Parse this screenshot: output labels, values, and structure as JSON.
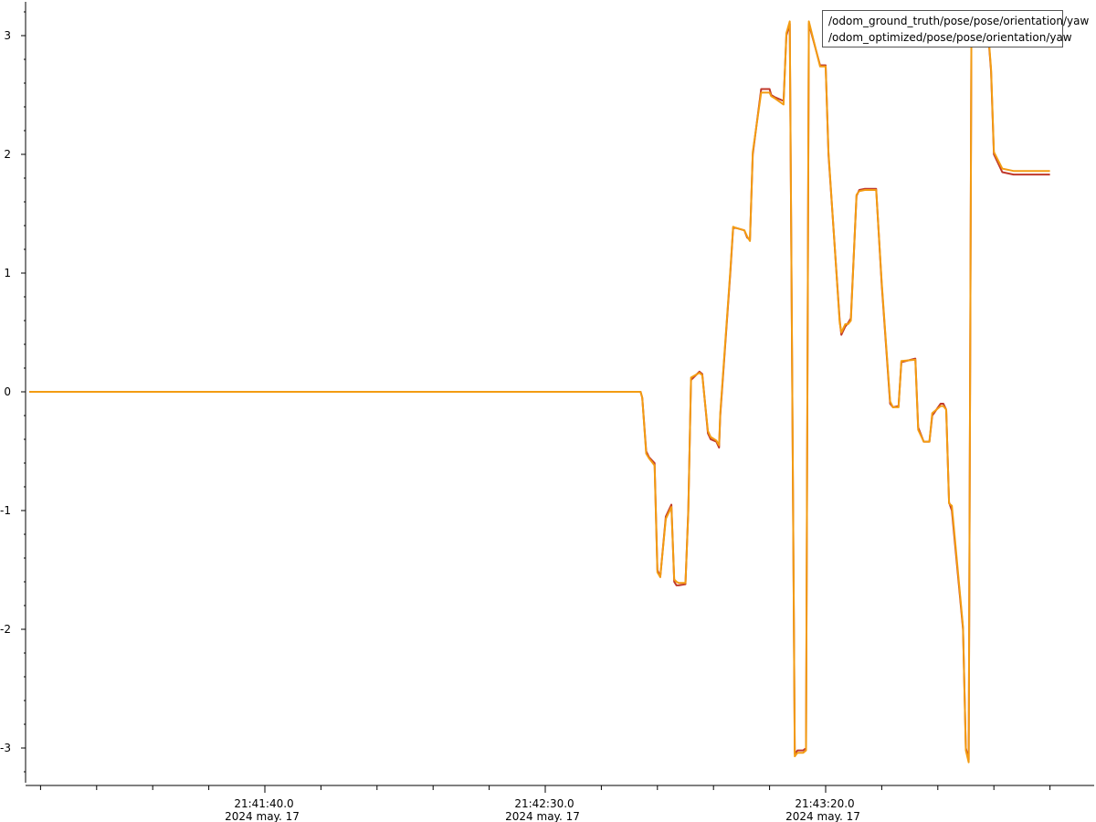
{
  "chart_data": {
    "type": "line",
    "title": "",
    "xlabel": "",
    "ylabel": "",
    "x_unit": "seconds relative to 21:41:40.0 (2024 may. 17)",
    "xlim": [
      -42,
      140
    ],
    "ylim": [
      -3.3,
      3.3
    ],
    "y_ticks": [
      3,
      2,
      1,
      0,
      -1,
      -2,
      -3
    ],
    "y_tick_labels": [
      "3",
      "2",
      "1",
      "0",
      "-1",
      "-2",
      "-3"
    ],
    "x_ticks": [
      0,
      50,
      100
    ],
    "x_tick_labels": [
      {
        "time": "21:41:40.0",
        "date": "2024 may. 17"
      },
      {
        "time": "21:42:30.0",
        "date": "2024 may. 17"
      },
      {
        "time": "21:43:20.0",
        "date": "2024 may. 17"
      }
    ],
    "grid": false,
    "legend_position": "top-right",
    "series": [
      {
        "name": "/odom_ground_truth/pose/pose/orientation/yaw",
        "color": "#c0392b",
        "x": [
          -42,
          67,
          67.3,
          68,
          68.5,
          69.5,
          70,
          70.5,
          71.5,
          72.5,
          73,
          73.4,
          73.8,
          75,
          75.5,
          76,
          77.5,
          78,
          79,
          79.5,
          80.5,
          81,
          81.2,
          83,
          83.5,
          84,
          85.5,
          86,
          86.5,
          87,
          88.5,
          90,
          90.3,
          91,
          92.5,
          93,
          93.6,
          94.5,
          94.8,
          95,
          96,
          96.5,
          97,
          99,
          100,
          100.5,
          102.5,
          102.8,
          103,
          103.5,
          104,
          104.5,
          105.5,
          106,
          107,
          107.5,
          109,
          110,
          111.5,
          112,
          113,
          113.5,
          116,
          116.5,
          117.5,
          118,
          118.5,
          119,
          120.5,
          121,
          121.5,
          122,
          122.5,
          124.5,
          125,
          125.5,
          126,
          129,
          129.5,
          130,
          131.5,
          133.5,
          134,
          136,
          136.5,
          138,
          140
        ],
        "y": [
          0,
          0,
          -0.05,
          -0.5,
          -0.55,
          -0.6,
          -1.5,
          -1.56,
          -1.05,
          -0.95,
          -1.6,
          -1.63,
          -1.63,
          -1.62,
          -1.0,
          0.1,
          0.17,
          0.15,
          -0.35,
          -0.4,
          -0.42,
          -0.47,
          -0.2,
          1.0,
          1.38,
          1.38,
          1.36,
          1.3,
          1.28,
          2.0,
          2.55,
          2.55,
          2.5,
          2.48,
          2.45,
          3.0,
          3.1,
          -3.05,
          -3.03,
          -3.02,
          -3.02,
          -3.0,
          3.1,
          2.75,
          2.75,
          2.0,
          0.6,
          0.48,
          0.5,
          0.55,
          0.58,
          0.62,
          1.65,
          1.7,
          1.71,
          1.71,
          1.71,
          0.9,
          -0.1,
          -0.13,
          -0.12,
          0.25,
          0.28,
          -0.3,
          -0.42,
          -0.42,
          -0.42,
          -0.2,
          -0.1,
          -0.1,
          -0.15,
          -0.93,
          -1.0,
          -2.0,
          -3.0,
          -3.1,
          3.05,
          3.0,
          2.7,
          2.0,
          1.85,
          1.83,
          1.83,
          1.83,
          1.83,
          1.83,
          1.83
        ]
      },
      {
        "name": "/odom_optimized/pose/pose/orientation/yaw",
        "color": "#f39c12",
        "x": [
          -42,
          67,
          67.3,
          68,
          68.5,
          69.5,
          70,
          70.5,
          71.5,
          72.5,
          73,
          73.4,
          73.8,
          75,
          75.5,
          76,
          77.5,
          78,
          79,
          79.5,
          80.5,
          81,
          81.2,
          83,
          83.5,
          84,
          85.5,
          86,
          86.5,
          87,
          88.5,
          90,
          90.3,
          91,
          92.5,
          93,
          93.6,
          94.5,
          94.8,
          95,
          96,
          96.5,
          97,
          99,
          100,
          100.5,
          102.5,
          102.8,
          103,
          103.5,
          104,
          104.5,
          105.5,
          106,
          107,
          107.5,
          109,
          110,
          111.5,
          112,
          113,
          113.5,
          116,
          116.5,
          117.5,
          118,
          118.5,
          119,
          120.5,
          121,
          121.5,
          122,
          122.5,
          124.5,
          125,
          125.5,
          126,
          129,
          129.5,
          130,
          131.5,
          133.5,
          134,
          136,
          136.5,
          138,
          140
        ],
        "y": [
          0,
          0,
          -0.05,
          -0.52,
          -0.56,
          -0.62,
          -1.52,
          -1.56,
          -1.07,
          -0.97,
          -1.58,
          -1.6,
          -1.61,
          -1.61,
          -1.02,
          0.12,
          0.16,
          0.14,
          -0.33,
          -0.38,
          -0.41,
          -0.45,
          -0.18,
          1.02,
          1.39,
          1.38,
          1.36,
          1.31,
          1.27,
          2.02,
          2.52,
          2.52,
          2.49,
          2.47,
          2.42,
          3.02,
          3.12,
          -3.07,
          -3.05,
          -3.04,
          -3.04,
          -3.02,
          3.12,
          2.74,
          2.74,
          2.02,
          0.58,
          0.5,
          0.52,
          0.57,
          0.57,
          0.6,
          1.66,
          1.69,
          1.7,
          1.7,
          1.7,
          0.92,
          -0.08,
          -0.13,
          -0.13,
          0.26,
          0.27,
          -0.32,
          -0.42,
          -0.42,
          -0.42,
          -0.18,
          -0.12,
          -0.12,
          -0.15,
          -0.94,
          -0.96,
          -1.98,
          -3.02,
          -3.12,
          3.08,
          3.02,
          2.72,
          2.02,
          1.88,
          1.86,
          1.86,
          1.86,
          1.86,
          1.86,
          1.86
        ]
      }
    ]
  },
  "legend": {
    "items": [
      {
        "label": "/odom_ground_truth/pose/pose/orientation/yaw",
        "color": "#c0392b"
      },
      {
        "label": "/odom_optimized/pose/pose/orientation/yaw",
        "color": "#f39c12"
      }
    ]
  }
}
